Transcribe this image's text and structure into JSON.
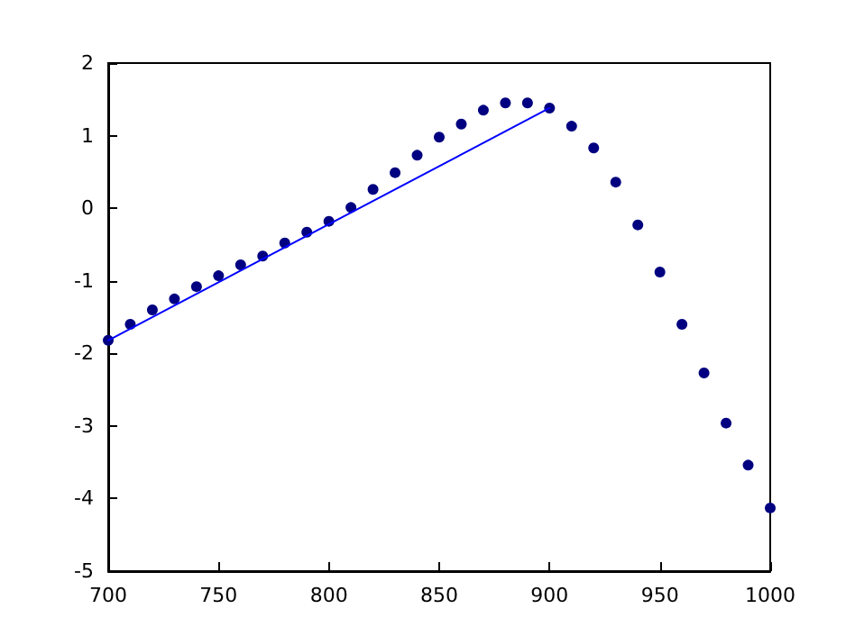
{
  "chart_data": {
    "type": "scatter",
    "xlim": [
      700,
      1000
    ],
    "ylim": [
      -5,
      2
    ],
    "xticks": [
      700,
      750,
      800,
      850,
      900,
      950,
      1000
    ],
    "yticks": [
      -5,
      -4,
      -3,
      -2,
      -1,
      0,
      1,
      2
    ],
    "grid": false,
    "series": [
      {
        "marker": "circle",
        "color": "#000080",
        "x": [
          700,
          710,
          720,
          730,
          740,
          750,
          760,
          770,
          780,
          790,
          800,
          810,
          820,
          830,
          840,
          850,
          860,
          870,
          880,
          890,
          900,
          910,
          920,
          930,
          940,
          950,
          960,
          970,
          980,
          990,
          1000
        ],
        "values": [
          -1.82,
          -1.6,
          -1.4,
          -1.25,
          -1.08,
          -0.93,
          -0.78,
          -0.66,
          -0.48,
          -0.33,
          -0.18,
          0.01,
          0.26,
          0.49,
          0.73,
          0.98,
          1.16,
          1.35,
          1.45,
          1.45,
          1.38,
          1.13,
          0.83,
          0.36,
          -0.23,
          -0.88,
          -1.6,
          -2.27,
          -2.96,
          -3.54,
          -4.13
        ]
      },
      {
        "type": "line",
        "marker": "none",
        "line_style": "solid",
        "color": "#0000ff",
        "x": [
          700,
          900
        ],
        "values": [
          -1.82,
          1.38
        ]
      }
    ]
  }
}
